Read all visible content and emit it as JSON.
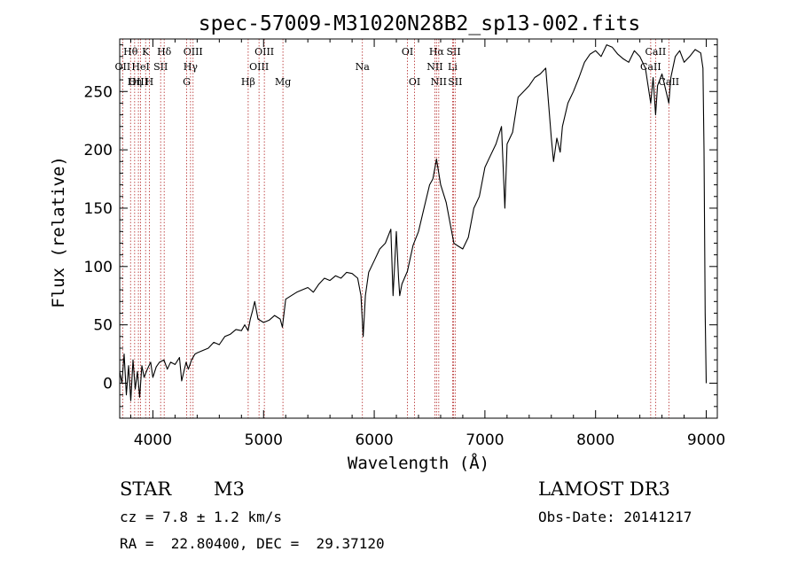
{
  "chart_data": {
    "type": "line",
    "title": "spec-57009-M31020N28B2_sp13-002.fits",
    "xlabel": "Wavelength (Å)",
    "ylabel": "Flux (relative)",
    "xlim": [
      3700,
      9100
    ],
    "ylim": [
      -30,
      295
    ],
    "xticks": [
      "4000",
      "5000",
      "6000",
      "7000",
      "8000",
      "9000"
    ],
    "yticks": [
      "0",
      "50",
      "100",
      "150",
      "200",
      "250"
    ],
    "series": [
      {
        "name": "flux",
        "x": [
          3700,
          3720,
          3740,
          3760,
          3780,
          3800,
          3820,
          3840,
          3860,
          3880,
          3900,
          3920,
          3950,
          3980,
          4000,
          4030,
          4060,
          4100,
          4130,
          4160,
          4200,
          4240,
          4260,
          4280,
          4300,
          4320,
          4350,
          4380,
          4400,
          4450,
          4500,
          4550,
          4600,
          4650,
          4700,
          4750,
          4800,
          4830,
          4860,
          4880,
          4900,
          4920,
          4950,
          5000,
          5050,
          5100,
          5150,
          5170,
          5200,
          5250,
          5300,
          5350,
          5400,
          5450,
          5500,
          5550,
          5600,
          5650,
          5700,
          5750,
          5800,
          5850,
          5880,
          5900,
          5920,
          5950,
          6000,
          6050,
          6100,
          6150,
          6170,
          6200,
          6220,
          6230,
          6250,
          6300,
          6350,
          6400,
          6450,
          6500,
          6530,
          6563,
          6600,
          6650,
          6700,
          6720,
          6750,
          6800,
          6850,
          6900,
          6950,
          7000,
          7050,
          7100,
          7150,
          7180,
          7200,
          7250,
          7300,
          7350,
          7400,
          7450,
          7500,
          7550,
          7600,
          7620,
          7650,
          7680,
          7700,
          7750,
          7800,
          7850,
          7900,
          7950,
          8000,
          8050,
          8100,
          8150,
          8200,
          8250,
          8300,
          8350,
          8400,
          8450,
          8498,
          8520,
          8542,
          8560,
          8600,
          8662,
          8680,
          8720,
          8760,
          8800,
          8850,
          8900,
          8950,
          8970,
          8980,
          8990,
          9000
        ],
        "values": [
          10,
          0,
          25,
          -10,
          15,
          -15,
          20,
          -5,
          10,
          -12,
          15,
          5,
          12,
          18,
          5,
          14,
          18,
          20,
          12,
          18,
          16,
          22,
          2,
          10,
          18,
          12,
          20,
          25,
          26,
          28,
          30,
          35,
          33,
          40,
          42,
          46,
          45,
          50,
          45,
          55,
          62,
          70,
          55,
          52,
          54,
          58,
          55,
          48,
          72,
          75,
          78,
          80,
          82,
          78,
          85,
          90,
          88,
          92,
          90,
          95,
          94,
          90,
          75,
          40,
          75,
          95,
          105,
          115,
          120,
          132,
          75,
          130,
          90,
          75,
          85,
          96,
          118,
          130,
          150,
          170,
          175,
          192,
          170,
          155,
          130,
          120,
          118,
          115,
          125,
          150,
          160,
          185,
          195,
          205,
          220,
          150,
          205,
          215,
          245,
          250,
          255,
          262,
          265,
          270,
          210,
          190,
          210,
          198,
          220,
          240,
          250,
          262,
          275,
          282,
          285,
          280,
          290,
          288,
          282,
          278,
          275,
          285,
          280,
          270,
          240,
          262,
          230,
          255,
          265,
          240,
          262,
          280,
          285,
          275,
          280,
          286,
          283,
          270,
          200,
          60,
          0
        ]
      }
    ],
    "line_markers": [
      {
        "label": "Hθ",
        "wavelength": 3798,
        "row": 1
      },
      {
        "label": "OII",
        "wavelength": 3727,
        "row": 2
      },
      {
        "label": "OIII",
        "wavelength": 3869,
        "row": 3
      },
      {
        "label": "K",
        "wavelength": 3934,
        "row": 1
      },
      {
        "label": "HeI",
        "wavelength": 3889,
        "row": 2
      },
      {
        "label": "Hη",
        "wavelength": 3835,
        "row": 3
      },
      {
        "label": "SII",
        "wavelength": 4070,
        "row": 2
      },
      {
        "label": "H",
        "wavelength": 3968,
        "row": 3
      },
      {
        "label": "Hδ",
        "wavelength": 4102,
        "row": 1
      },
      {
        "label": "OIII",
        "wavelength": 4363,
        "row": 1
      },
      {
        "label": "Hγ",
        "wavelength": 4340,
        "row": 2
      },
      {
        "label": "G",
        "wavelength": 4305,
        "row": 3
      },
      {
        "label": "OIII",
        "wavelength": 5007,
        "row": 1
      },
      {
        "label": "OIII",
        "wavelength": 4959,
        "row": 2
      },
      {
        "label": "Hβ",
        "wavelength": 4861,
        "row": 3
      },
      {
        "label": "Mg",
        "wavelength": 5175,
        "row": 3
      },
      {
        "label": "Na",
        "wavelength": 5893,
        "row": 2
      },
      {
        "label": "OI",
        "wavelength": 6300,
        "row": 1
      },
      {
        "label": "OI",
        "wavelength": 6364,
        "row": 3
      },
      {
        "label": "Hα",
        "wavelength": 6563,
        "row": 1
      },
      {
        "label": "SII",
        "wavelength": 6717,
        "row": 1
      },
      {
        "label": "NII",
        "wavelength": 6548,
        "row": 2
      },
      {
        "label": "Li",
        "wavelength": 6708,
        "row": 2
      },
      {
        "label": "NII",
        "wavelength": 6583,
        "row": 3
      },
      {
        "label": "SII",
        "wavelength": 6731,
        "row": 3
      },
      {
        "label": "CaII",
        "wavelength": 8542,
        "row": 1
      },
      {
        "label": "CaII",
        "wavelength": 8498,
        "row": 2
      },
      {
        "label": "CaII",
        "wavelength": 8662,
        "row": 3
      }
    ]
  },
  "info": {
    "star_class": "STAR",
    "subclass": "M3",
    "survey": "LAMOST DR3",
    "cz": "cz = 7.8 ± 1.2 km/s",
    "obs_date": "Obs-Date: 20141217",
    "coords": "RA =  22.80400, DEC =  29.37120"
  },
  "colors": {
    "spectrum": "#000000",
    "marker_line": "#b22222",
    "axes": "#000000"
  }
}
